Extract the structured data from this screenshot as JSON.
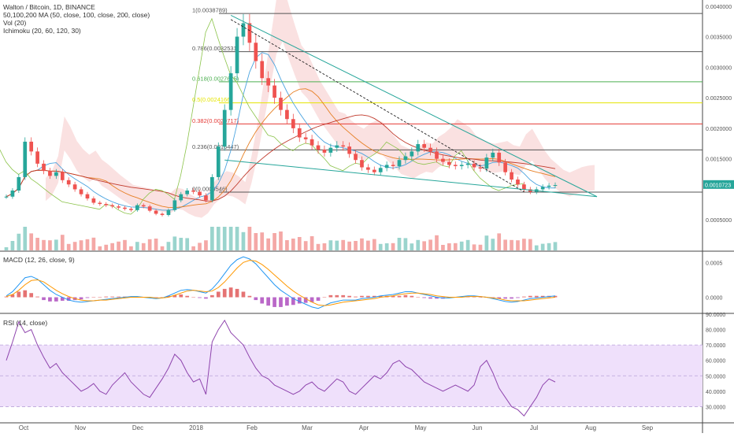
{
  "header": {
    "title": "Walton / Bitcoin, 1D, BINANCE",
    "indicators": [
      "50,100,200 MA (50, close, 100, close, 200, close)",
      "Vol (20)",
      "Ichimoku (20, 60, 120, 30)"
    ]
  },
  "macd": {
    "label": "MACD (12, 26, close, 9)"
  },
  "rsi": {
    "label": "RSI (14, close)"
  },
  "last_price": "0.0010723",
  "chart_data": {
    "type": "candlestick",
    "x_ticks": [
      "Oct",
      "Nov",
      "Dec",
      "2018",
      "Feb",
      "Mar",
      "Apr",
      "May",
      "Jun",
      "Jul",
      "Aug",
      "Sep"
    ],
    "price_axis": {
      "ticks": [
        "0.0040000",
        "0.0035000",
        "0.0030000",
        "0.0025000",
        "0.0020000",
        "0.0015000",
        "0.0005000"
      ],
      "tick_values": [
        0.004,
        0.0035,
        0.003,
        0.0025,
        0.002,
        0.0015,
        0.0005
      ],
      "range": [
        0.0,
        0.0041
      ]
    },
    "fibonacci_levels": [
      {
        "label": "1(0.0038789)",
        "value": 0.0038789,
        "color": "#555555"
      },
      {
        "label": "0.786(0.0032531)",
        "value": 0.0032531,
        "color": "#555555"
      },
      {
        "label": "0.618(0.0027615)",
        "value": 0.0027615,
        "color": "#4caf50"
      },
      {
        "label": "0.5(0.0024166)",
        "value": 0.0024166,
        "color": "#e5e500"
      },
      {
        "label": "0.382(0.0020717)",
        "value": 0.0020717,
        "color": "#e53935"
      },
      {
        "label": "0.236(0.0016447)",
        "value": 0.0016447,
        "color": "#555555"
      },
      {
        "label": "0(0.0009546)",
        "value": 0.0009546,
        "color": "#555555"
      }
    ],
    "price_close": [
      0.00088,
      0.00098,
      0.0012,
      0.00178,
      0.00162,
      0.00142,
      0.0013,
      0.00122,
      0.00128,
      0.00115,
      0.00108,
      0.001,
      0.00092,
      0.00085,
      0.00078,
      0.00076,
      0.00074,
      0.00072,
      0.0007,
      0.00068,
      0.00066,
      0.00074,
      0.00072,
      0.00065,
      0.0006,
      0.00058,
      0.00066,
      0.00082,
      0.00092,
      0.00098,
      0.00096,
      0.0009,
      0.00082,
      0.0012,
      0.0017,
      0.0023,
      0.0029,
      0.0035,
      0.00372,
      0.0034,
      0.0031,
      0.00282,
      0.0027,
      0.0025,
      0.0023,
      0.00215,
      0.002,
      0.00185,
      0.00182,
      0.00172,
      0.00165,
      0.0016,
      0.00168,
      0.00172,
      0.0017,
      0.00158,
      0.00148,
      0.00136,
      0.00132,
      0.00128,
      0.00135,
      0.0014,
      0.00138,
      0.00148,
      0.00154,
      0.00162,
      0.00174,
      0.00168,
      0.00162,
      0.0015,
      0.00145,
      0.0014,
      0.00138,
      0.0014,
      0.00142,
      0.00136,
      0.00134,
      0.00152,
      0.0016,
      0.00144,
      0.00128,
      0.00116,
      0.00108,
      0.001,
      0.00096,
      0.001,
      0.00104,
      0.00106,
      0.00107
    ],
    "macd_axis": {
      "ticks": [
        "0.0005",
        "0.0000"
      ],
      "tick_values": [
        0.0005,
        0.0
      ],
      "range": [
        -0.00022,
        0.00065
      ]
    },
    "macd_line": [
      2e-05,
      8e-05,
      0.00018,
      0.00028,
      0.0003,
      0.00026,
      0.00018,
      0.0001,
      4e-05,
      0.0,
      -4e-05,
      -6e-05,
      -7e-05,
      -6e-05,
      -5e-05,
      -4e-05,
      -3e-05,
      -2e-05,
      -1e-05,
      0.0,
      1e-05,
      1e-05,
      0.0,
      -1e-05,
      -2e-05,
      -1e-05,
      2e-05,
      6e-05,
      0.0001,
      0.00011,
      0.0001,
      8e-05,
      6e-05,
      0.00012,
      0.00022,
      0.00034,
      0.00046,
      0.00054,
      0.00058,
      0.00055,
      0.00048,
      0.00038,
      0.00028,
      0.00018,
      0.0001,
      4e-05,
      -2e-05,
      -6e-05,
      -0.0001,
      -0.00014,
      -0.00016,
      -0.00012,
      -8e-05,
      -6e-05,
      -4e-05,
      -4e-05,
      -4e-05,
      -2e-05,
      -1e-05,
      0.0,
      2e-05,
      3e-05,
      4e-05,
      6e-05,
      8e-05,
      8e-05,
      6e-05,
      4e-05,
      2e-05,
      0.0,
      -1e-05,
      -1e-05,
      0.0,
      1e-05,
      2e-05,
      2e-05,
      1e-05,
      0.0,
      -2e-05,
      -4e-05,
      -6e-05,
      -7e-05,
      -6e-05,
      -4e-05,
      -2e-05,
      -1e-05,
      0.0,
      1e-05,
      2e-05
    ],
    "signal_line": [
      1e-05,
      4e-05,
      0.0001,
      0.00018,
      0.00024,
      0.00025,
      0.00022,
      0.00016,
      0.0001,
      5e-05,
      1e-05,
      -2e-05,
      -4e-05,
      -5e-05,
      -5e-05,
      -4e-05,
      -4e-05,
      -3e-05,
      -2e-05,
      -1e-05,
      0.0,
      0.0,
      0.0,
      0.0,
      -1e-05,
      -1e-05,
      0.0,
      3e-05,
      6e-05,
      9e-05,
      0.0001,
      9e-05,
      8e-05,
      9e-05,
      0.00014,
      0.00022,
      0.00032,
      0.00042,
      0.0005,
      0.00053,
      0.00052,
      0.00047,
      0.0004,
      0.00032,
      0.00024,
      0.00016,
      9e-05,
      3e-05,
      -2e-05,
      -7e-05,
      -0.00011,
      -0.00012,
      -0.00011,
      -9e-05,
      -7e-05,
      -6e-05,
      -5e-05,
      -4e-05,
      -3e-05,
      -2e-05,
      0.0,
      1e-05,
      2e-05,
      4e-05,
      5e-05,
      6e-05,
      6e-05,
      5e-05,
      4e-05,
      2e-05,
      1e-05,
      0.0,
      0.0,
      0.0,
      1e-05,
      1e-05,
      1e-05,
      0.0,
      -1e-05,
      -2e-05,
      -4e-05,
      -5e-05,
      -5e-05,
      -5e-05,
      -4e-05,
      -3e-05,
      -2e-05,
      -1e-05,
      0.0
    ],
    "rsi_axis": {
      "ticks": [
        "90.0000",
        "80.0000",
        "70.0000",
        "60.0000",
        "50.0000",
        "40.0000",
        "30.0000"
      ],
      "tick_values": [
        90,
        80,
        70,
        60,
        50,
        40,
        30
      ],
      "range": [
        20,
        90
      ],
      "band": [
        30,
        70
      ]
    },
    "rsi": [
      60,
      72,
      85,
      78,
      80,
      70,
      62,
      55,
      58,
      52,
      48,
      44,
      40,
      42,
      45,
      40,
      38,
      44,
      48,
      52,
      46,
      42,
      38,
      36,
      42,
      48,
      55,
      64,
      60,
      52,
      46,
      48,
      38,
      72,
      80,
      86,
      78,
      74,
      70,
      62,
      55,
      50,
      48,
      44,
      42,
      40,
      38,
      40,
      44,
      46,
      42,
      40,
      44,
      48,
      46,
      40,
      38,
      42,
      46,
      50,
      48,
      52,
      58,
      60,
      56,
      54,
      50,
      46,
      44,
      42,
      40,
      42,
      44,
      42,
      40,
      44,
      56,
      60,
      52,
      42,
      36,
      30,
      28,
      24,
      30,
      36,
      44,
      48,
      46
    ]
  }
}
